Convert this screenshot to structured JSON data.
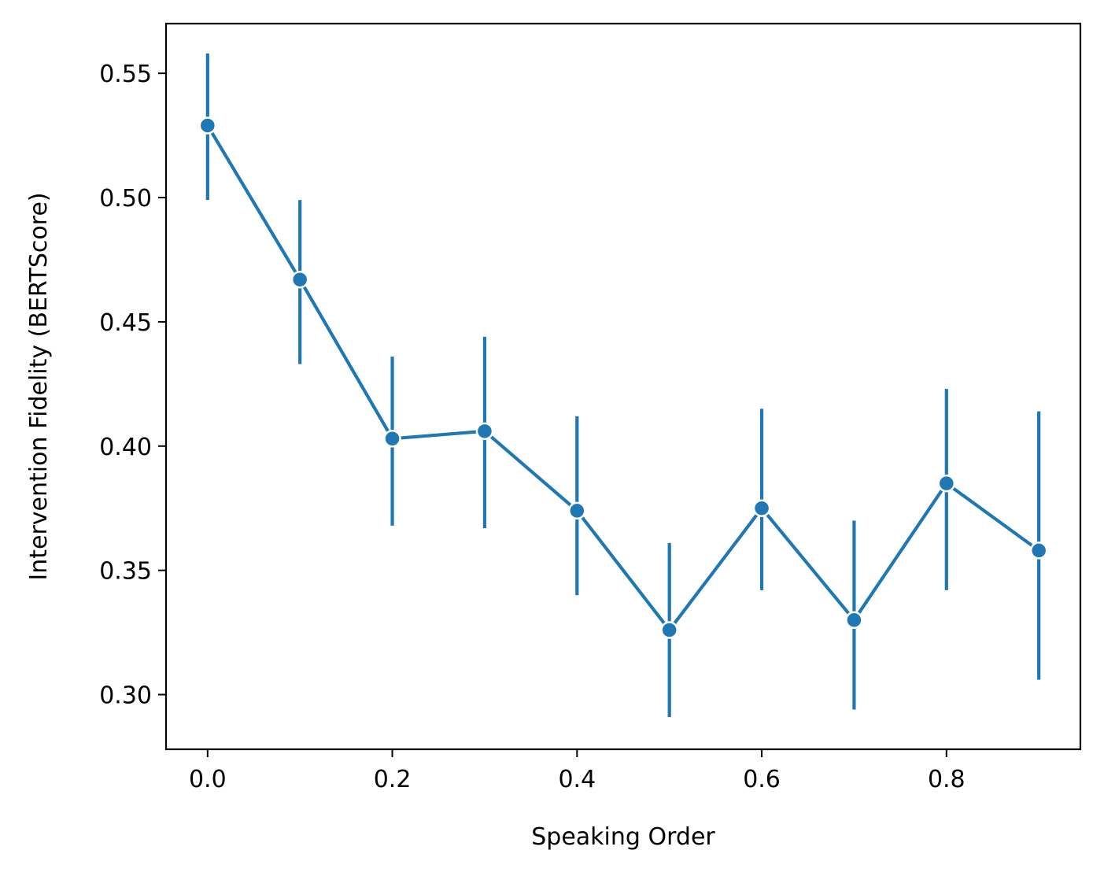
{
  "chart_data": {
    "type": "line",
    "xlabel": "Speaking Order",
    "ylabel": "Intervention Fidelity (BERTScore)",
    "xlim": [
      -0.045,
      0.945
    ],
    "ylim": [
      0.278,
      0.57
    ],
    "xticks": [
      0.0,
      0.2,
      0.4,
      0.6,
      0.8
    ],
    "xtick_labels": [
      "0.0",
      "0.2",
      "0.4",
      "0.6",
      "0.8"
    ],
    "yticks": [
      0.3,
      0.35,
      0.4,
      0.45,
      0.5,
      0.55
    ],
    "ytick_labels": [
      "0.30",
      "0.35",
      "0.40",
      "0.45",
      "0.50",
      "0.55"
    ],
    "grid": false,
    "legend": "none",
    "series": [
      {
        "color": "#1f77b4",
        "x": [
          0.0,
          0.1,
          0.2,
          0.3,
          0.4,
          0.5,
          0.6,
          0.7,
          0.8,
          0.9
        ],
        "y": [
          0.529,
          0.467,
          0.403,
          0.406,
          0.374,
          0.326,
          0.375,
          0.33,
          0.385,
          0.358
        ],
        "err_low": [
          0.499,
          0.433,
          0.368,
          0.367,
          0.34,
          0.291,
          0.342,
          0.294,
          0.342,
          0.306
        ],
        "err_high": [
          0.558,
          0.499,
          0.436,
          0.444,
          0.412,
          0.361,
          0.415,
          0.37,
          0.423,
          0.414
        ]
      }
    ]
  }
}
